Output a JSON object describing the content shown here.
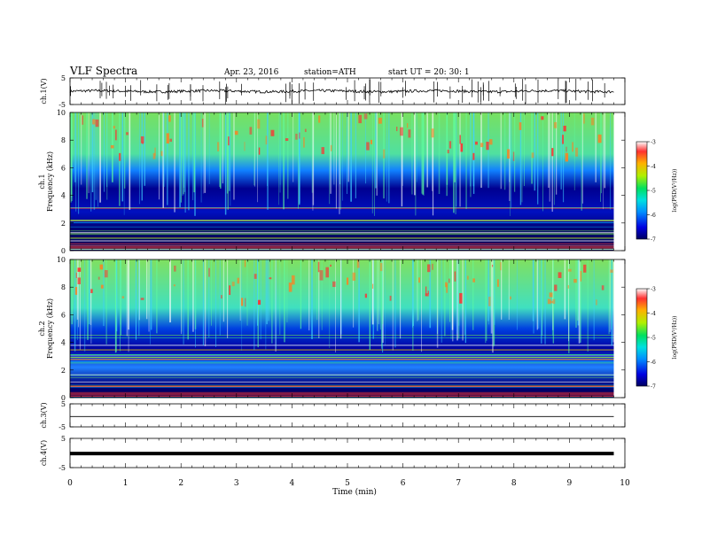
{
  "header": {
    "title": "VLF Spectra",
    "date": "Apr. 23, 2016",
    "station": "station=ATH",
    "start": "start UT =  20: 30: 1"
  },
  "colorbar": {
    "label": "log(PSD(V²/Hz))",
    "ticks": [
      "-3",
      "-4",
      "-5",
      "-6",
      "-7"
    ],
    "range": [
      -7,
      -3
    ]
  },
  "chart_data": [
    {
      "type": "line",
      "panel": "ch1-waveform",
      "ylabel": "ch.1(V)",
      "ylim": [
        -5,
        5
      ],
      "yticks": [
        "5",
        "-5"
      ],
      "xlim": [
        0,
        10
      ]
    },
    {
      "type": "heatmap",
      "panel": "ch1-spectrogram",
      "ylabel": "ch.1\nFrequency (kHz)",
      "ylabel_lines": [
        "ch.1",
        "Frequency (kHz)"
      ],
      "ylim": [
        0,
        10
      ],
      "yticks": [
        "0",
        "2",
        "4",
        "6",
        "8",
        "10"
      ],
      "xlim": [
        0,
        10
      ],
      "color_scale": "log(PSD(V²/Hz))",
      "color_range": [
        -7,
        -3
      ]
    },
    {
      "type": "heatmap",
      "panel": "ch2-spectrogram",
      "ylabel_lines": [
        "ch.2",
        "Frequency (kHz)"
      ],
      "ylim": [
        0,
        10
      ],
      "yticks": [
        "0",
        "2",
        "4",
        "6",
        "8",
        "10"
      ],
      "xlim": [
        0,
        10
      ],
      "color_scale": "log(PSD(V²/Hz))",
      "color_range": [
        -7,
        -3
      ]
    },
    {
      "type": "line",
      "panel": "ch3-waveform",
      "ylabel": "ch.3(V)",
      "ylim": [
        -5,
        5
      ],
      "yticks": [
        "5",
        "-5"
      ],
      "xlim": [
        0,
        10
      ]
    },
    {
      "type": "line",
      "panel": "ch4-waveform",
      "ylabel": "ch.4(V)",
      "ylim": [
        -5,
        5
      ],
      "yticks": [
        "5",
        "-5"
      ],
      "xlim": [
        0,
        10
      ]
    }
  ],
  "xaxis": {
    "label": "Time (min)",
    "ticks": [
      "0",
      "1",
      "2",
      "3",
      "4",
      "5",
      "6",
      "7",
      "8",
      "9",
      "10"
    ]
  }
}
